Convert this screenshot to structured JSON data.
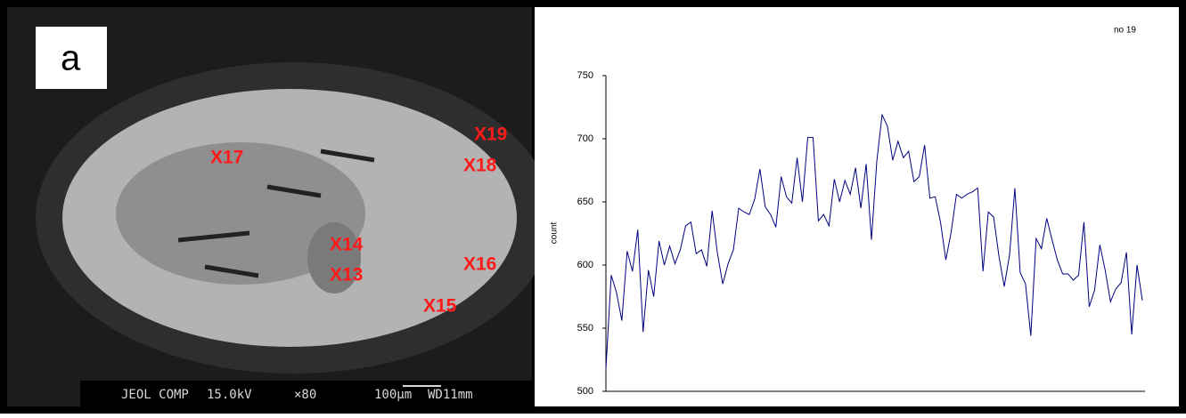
{
  "image": {
    "panel_label": "a",
    "markers": [
      "X17",
      "X19",
      "X18",
      "X14",
      "X13",
      "X16",
      "X15"
    ],
    "caption": [
      "JEOL COMP",
      "15.0kV",
      "×80",
      "100μm",
      "WD11mm"
    ]
  },
  "chart_data": {
    "type": "line",
    "title": "no 19",
    "y_label": "count",
    "ylim": [
      500,
      750
    ],
    "yticks": [
      500,
      550,
      600,
      650,
      700,
      750
    ],
    "series": [
      {
        "name": "no 19",
        "color": "#000080",
        "values": [
          518,
          592,
          578,
          556,
          611,
          595,
          628,
          547,
          596,
          575,
          619,
          600,
          615,
          601,
          612,
          631,
          634,
          609,
          612,
          599,
          643,
          609,
          585,
          601,
          612,
          645,
          642,
          640,
          652,
          676,
          646,
          640,
          630,
          670,
          654,
          649,
          685,
          650,
          701,
          701,
          635,
          640,
          631,
          668,
          650,
          667,
          656,
          677,
          645,
          680,
          620,
          682,
          719,
          710,
          683,
          698,
          685,
          690,
          666,
          670,
          695,
          653,
          654,
          634,
          604,
          626,
          656,
          653,
          656,
          658,
          661,
          595,
          642,
          638,
          607,
          583,
          608,
          661,
          594,
          585,
          544,
          621,
          613,
          637,
          620,
          604,
          593,
          593,
          588,
          592,
          634,
          567,
          580,
          616,
          596,
          571,
          581,
          586,
          610,
          545,
          600,
          572
        ]
      }
    ]
  }
}
